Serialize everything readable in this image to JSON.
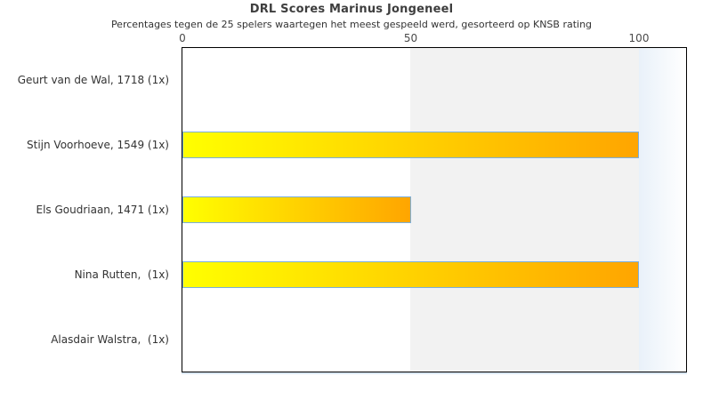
{
  "page": {
    "background": "#ffffff"
  },
  "chart_data": {
    "type": "bar",
    "orientation": "horizontal",
    "title": "DRL Scores Marinus Jongeneel",
    "subtitle": "Percentages tegen de 25 spelers waartegen het meest gespeeld werd, gesorteerd op KNSB rating",
    "categories": [
      "Geurt van de Wal, 1718 (1x)",
      "Stijn Voorhoeve, 1549 (1x)",
      "Els Goudriaan, 1471 (1x)",
      "Nina Rutten,  (1x)",
      "Alasdair Walstra,  (1x)"
    ],
    "values": [
      0,
      100,
      50,
      100,
      0
    ],
    "xlabel": "",
    "ylabel": "",
    "xlim": [
      0,
      110
    ],
    "xticks": [
      0,
      50,
      100
    ],
    "grid": false,
    "legend": false,
    "colors": {
      "bar_gradient_start": "#ffff00",
      "bar_gradient_end": "#ffa500",
      "bar_border": "#7aaedd",
      "band_50_100": "#f2f2f2",
      "band_over_100_start": "#e9f1f9",
      "band_over_100_end": "#ffffff",
      "plot_border": "#000000",
      "title_color": "#3e3e3e",
      "text_color": "#333333"
    }
  }
}
